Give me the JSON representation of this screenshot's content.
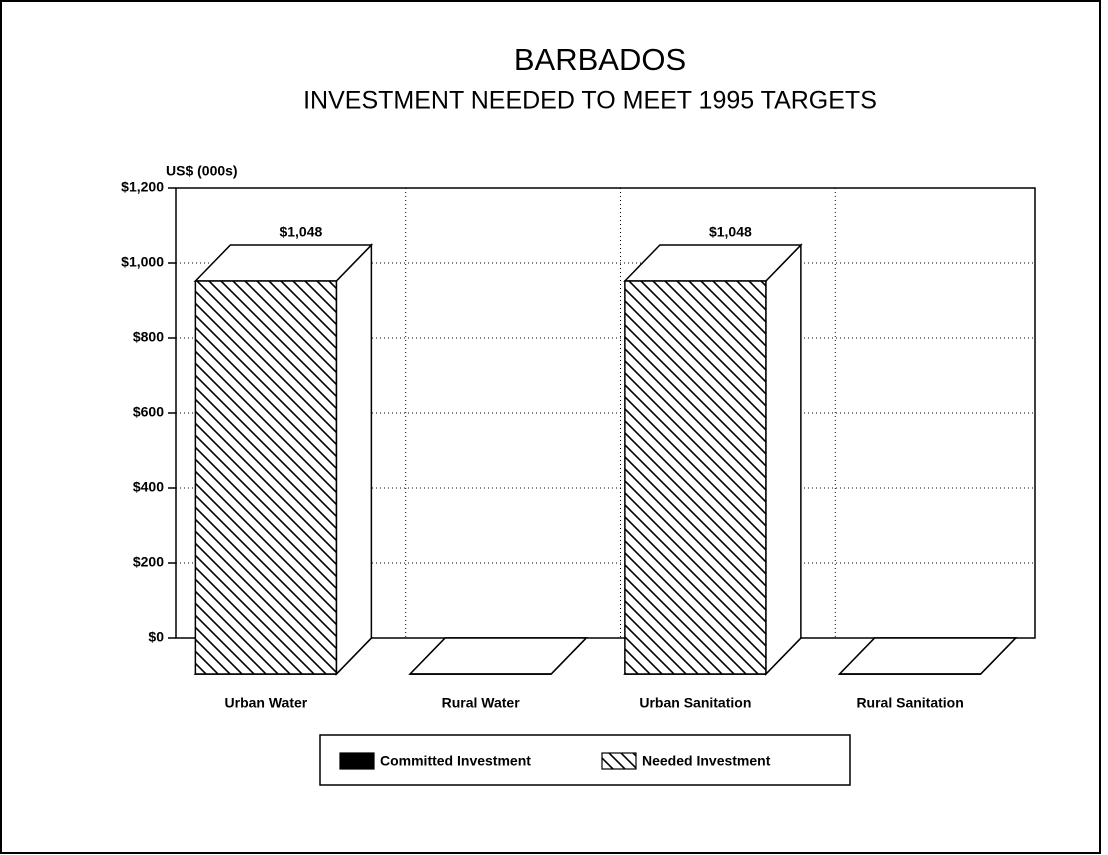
{
  "chart_data": {
    "type": "bar3d",
    "title": "BARBADOS",
    "subtitle": "INVESTMENT NEEDED TO MEET 1995 TARGETS",
    "y_axis_label": "US$ (000s)",
    "categories": [
      "Urban Water",
      "Rural Water",
      "Urban Sanitation",
      "Rural Sanitation"
    ],
    "stacked": true,
    "series": [
      {
        "name": "Committed Investment",
        "color": "#000000",
        "hatch": false,
        "values": [
          0,
          0,
          0,
          0
        ]
      },
      {
        "name": "Needed Investment",
        "color": "#000000",
        "hatch": true,
        "values": [
          1048,
          0,
          1048,
          0
        ],
        "value_labels": [
          "$1,048",
          null,
          "$1,048",
          null
        ]
      }
    ],
    "ylim": [
      0,
      1200
    ],
    "yticks": [
      {
        "value": 0,
        "label": "$0"
      },
      {
        "value": 200,
        "label": "$200"
      },
      {
        "value": 400,
        "label": "$400"
      },
      {
        "value": 600,
        "label": "$600"
      },
      {
        "value": 800,
        "label": "$800"
      },
      {
        "value": 1000,
        "label": "$1,000"
      },
      {
        "value": 1200,
        "label": "$1,200"
      }
    ],
    "grid": true,
    "legend": "bottom"
  }
}
